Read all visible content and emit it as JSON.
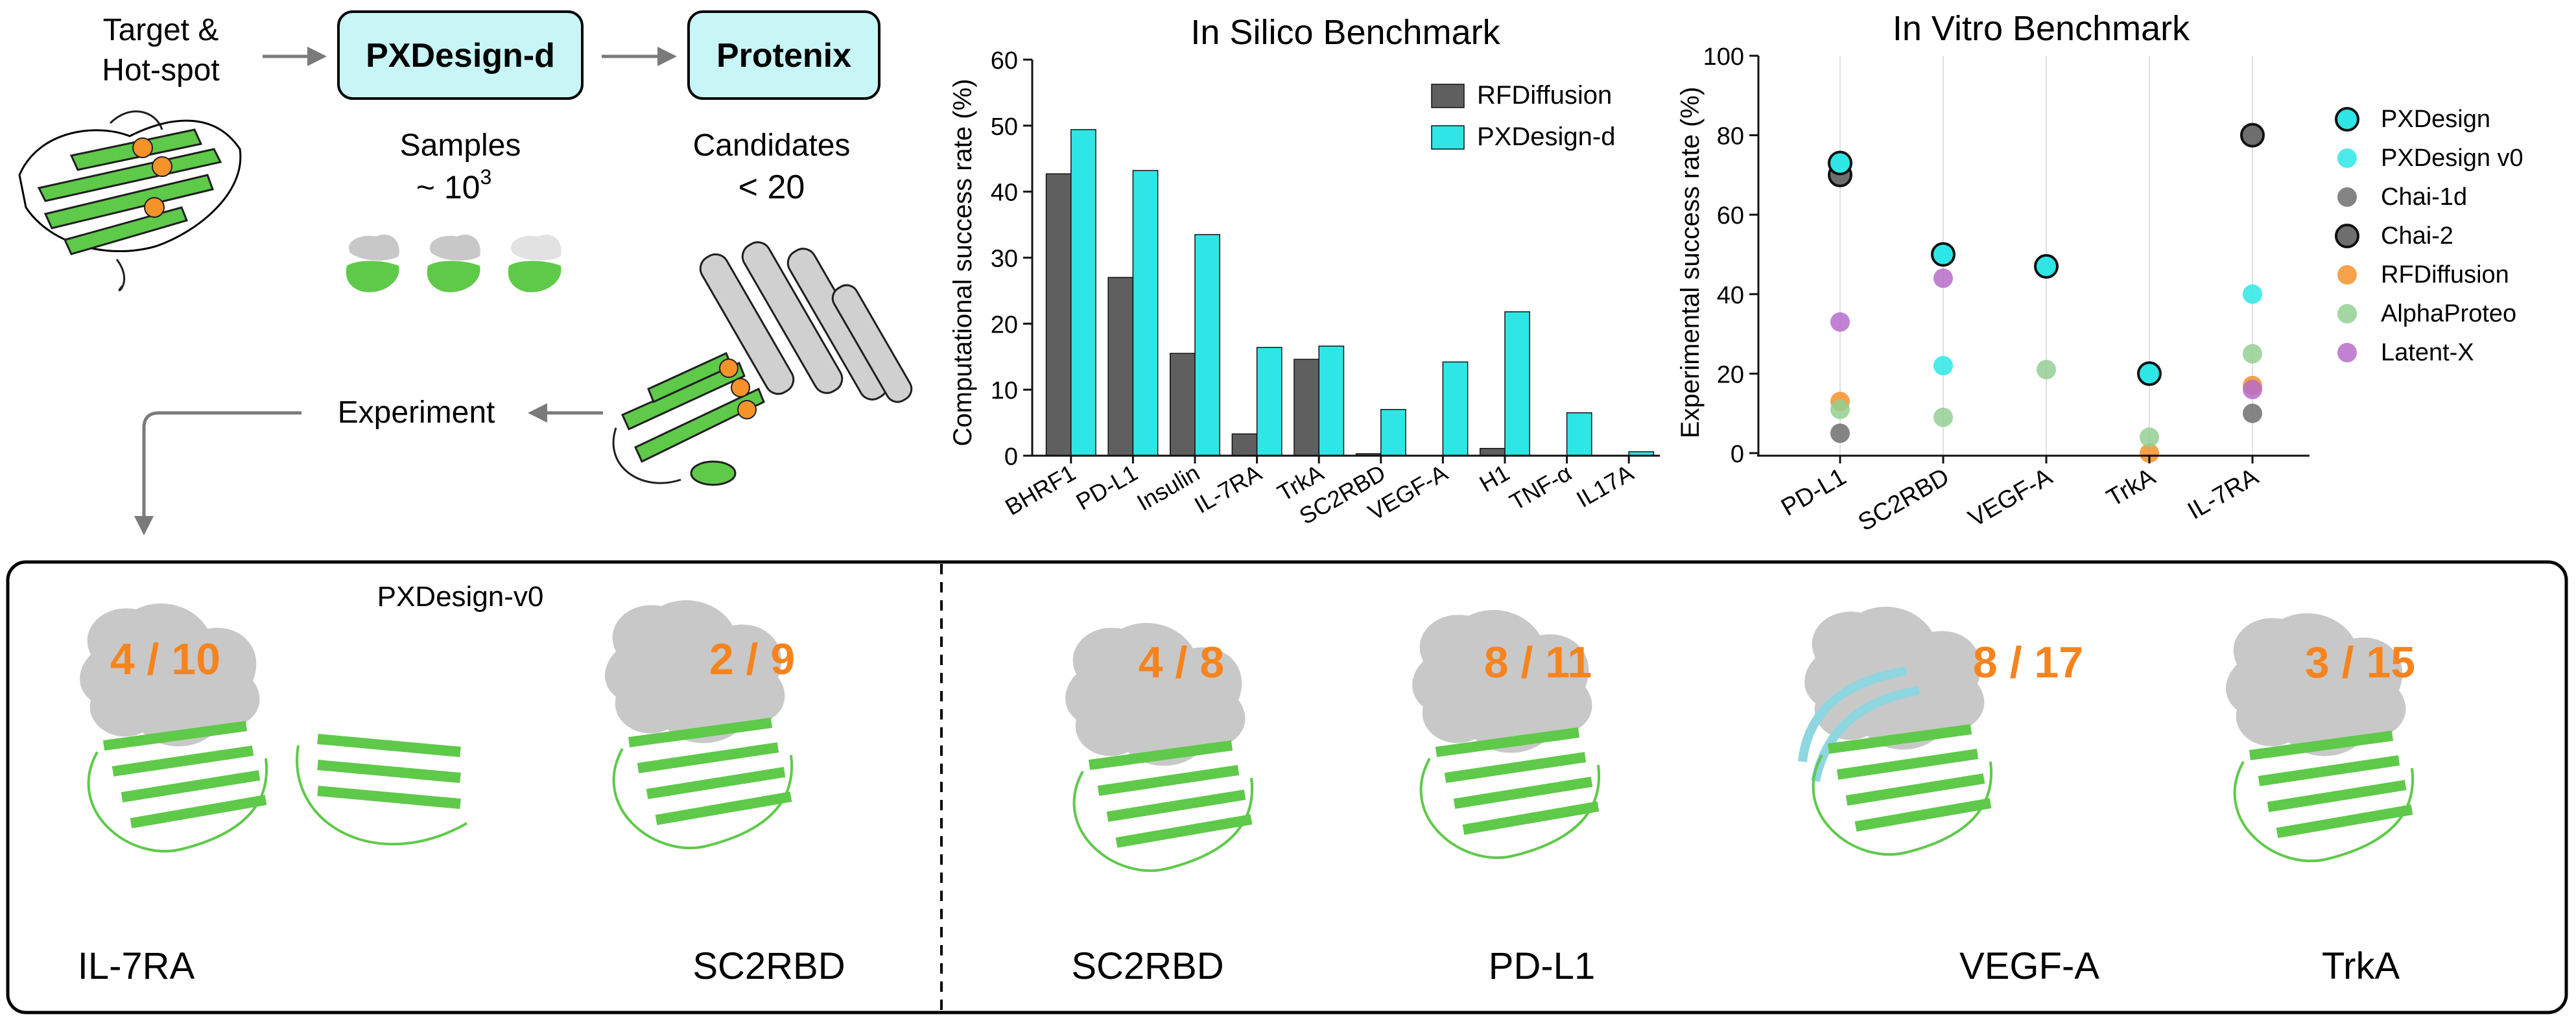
{
  "pipeline": {
    "target_label_line1": "Target &",
    "target_label_line2": "Hot-spot",
    "step1_box": "PXDesign-d",
    "step2_box": "Protenix",
    "samples_label": "Samples",
    "samples_count": "~ 10",
    "samples_exponent": "3",
    "candidates_label": "Candidates",
    "candidates_count": "< 20",
    "experiment_label": "Experiment"
  },
  "chart_data": [
    {
      "type": "bar",
      "title": "In Silico Benchmark",
      "xlabel": "",
      "ylabel": "Computational success rate (%)",
      "ylim": [
        0,
        60
      ],
      "yticks": [
        "0",
        "10",
        "20",
        "30",
        "40",
        "50",
        "60"
      ],
      "categories": [
        "BHRF1",
        "PD-L1",
        "Insulin",
        "IL-7RA",
        "TrkA",
        "SC2RBD",
        "VEGF-A",
        "H1",
        "TNF-α",
        "IL17A"
      ],
      "series": [
        {
          "name": "RFDiffusion",
          "color": "#5f5f5f",
          "values": [
            42.7,
            27.0,
            15.5,
            3.3,
            14.6,
            0.3,
            0.0,
            1.1,
            0.0,
            0.0
          ]
        },
        {
          "name": "PXDesign-d",
          "color": "#2ee6e6",
          "values": [
            49.4,
            43.2,
            33.5,
            16.4,
            16.6,
            7.0,
            14.2,
            21.8,
            6.5,
            0.6
          ]
        }
      ],
      "legend": "top-right",
      "grid": false
    },
    {
      "type": "scatter",
      "title": "In Vitro Benchmark",
      "xlabel": "",
      "ylabel": "Experimental success rate (%)",
      "ylim": [
        0,
        100
      ],
      "yticks": [
        "0",
        "20",
        "40",
        "60",
        "80",
        "100"
      ],
      "categories": [
        "PD-L1",
        "SC2RBD",
        "VEGF-A",
        "TrkA",
        "IL-7RA"
      ],
      "grid": true,
      "legend": "right",
      "series": [
        {
          "name": "PXDesign",
          "color": "#2ee6e6",
          "outline": true,
          "values": [
            73,
            50,
            47,
            20,
            null
          ]
        },
        {
          "name": "PXDesign v0",
          "color": "#2ee6e6",
          "outline": false,
          "values": [
            null,
            22,
            null,
            null,
            40
          ]
        },
        {
          "name": "Chai-1d",
          "color": "#6e6e6e",
          "outline": false,
          "values": [
            5,
            null,
            null,
            null,
            10
          ]
        },
        {
          "name": "Chai-2",
          "color": "#6e6e6e",
          "outline": true,
          "values": [
            70,
            null,
            null,
            null,
            80
          ]
        },
        {
          "name": "RFDiffusion",
          "color": "#f5922a",
          "outline": false,
          "values": [
            13,
            null,
            null,
            0,
            17
          ]
        },
        {
          "name": "AlphaProteo",
          "color": "#93cf93",
          "outline": false,
          "values": [
            11,
            9,
            21,
            4,
            25
          ]
        },
        {
          "name": "Latent-X",
          "color": "#b56cc9",
          "outline": false,
          "values": [
            33,
            44,
            null,
            null,
            16
          ]
        }
      ]
    }
  ],
  "gallery": {
    "left_title": "PXDesign-v0",
    "panels": [
      {
        "ratio": "4 / 10",
        "label": "IL-7RA"
      },
      {
        "ratio": "2 / 9",
        "label": "SC2RBD"
      },
      {
        "ratio": "4 / 8",
        "label": "SC2RBD"
      },
      {
        "ratio": "8 / 11",
        "label": "PD-L1"
      },
      {
        "ratio": "8 / 17",
        "label": "VEGF-A"
      },
      {
        "ratio": "3 / 15",
        "label": "TrkA"
      }
    ],
    "colors": {
      "protein": "#5fc94a",
      "target": "#c8c8c8",
      "accent": "#f5841f",
      "box": "#c8f5f5"
    }
  }
}
